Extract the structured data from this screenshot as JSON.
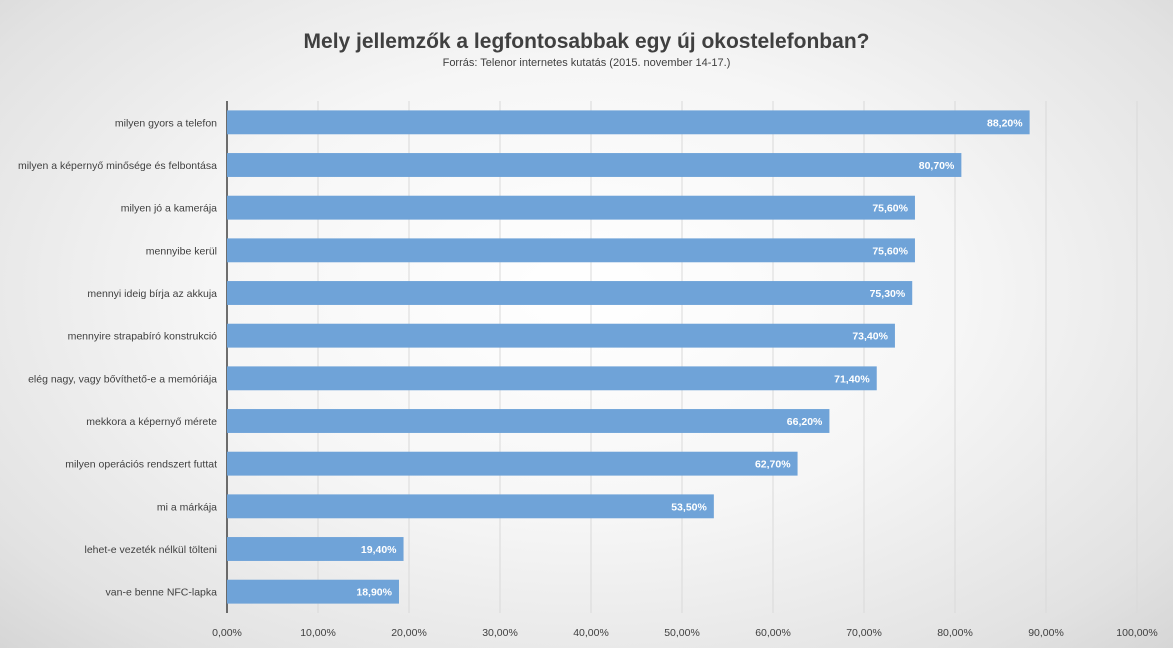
{
  "chart_data": {
    "type": "bar",
    "orientation": "horizontal",
    "title": "Mely jellemzők a legfontosabbak egy új okostelefonban?",
    "subtitle": "Forrás: Telenor internetes kutatás (2015. november 14-17.)",
    "categories": [
      "milyen gyors a telefon",
      "milyen a képernyő minősége és felbontása",
      "milyen jó a kamerája",
      "mennyibe kerül",
      "mennyi ideig bírja az akkuja",
      "mennyire strapabíró konstrukció",
      "elég nagy, vagy bővíthető-e a memóriája",
      "mekkora a képernyő mérete",
      "milyen operációs rendszert futtat",
      "mi a márkája",
      "lehet-e vezeték nélkül tölteni",
      "van-e benne NFC-lapka"
    ],
    "values": [
      88.2,
      80.7,
      75.6,
      75.6,
      75.3,
      73.4,
      71.4,
      66.2,
      62.7,
      53.5,
      19.4,
      18.9
    ],
    "value_labels": [
      "88,20%",
      "80,70%",
      "75,60%",
      "75,60%",
      "75,30%",
      "73,40%",
      "71,40%",
      "66,20%",
      "62,70%",
      "53,50%",
      "19,40%",
      "18,90%"
    ],
    "xlim": [
      0,
      100
    ],
    "xticks": [
      0,
      10,
      20,
      30,
      40,
      50,
      60,
      70,
      80,
      90,
      100
    ],
    "xtick_labels": [
      "0,00%",
      "10,00%",
      "20,00%",
      "30,00%",
      "40,00%",
      "50,00%",
      "60,00%",
      "70,00%",
      "80,00%",
      "90,00%",
      "100,00%"
    ],
    "xlabel": "",
    "ylabel": "",
    "grid": true,
    "legend": "none",
    "bar_color": "#6fa3d8"
  }
}
